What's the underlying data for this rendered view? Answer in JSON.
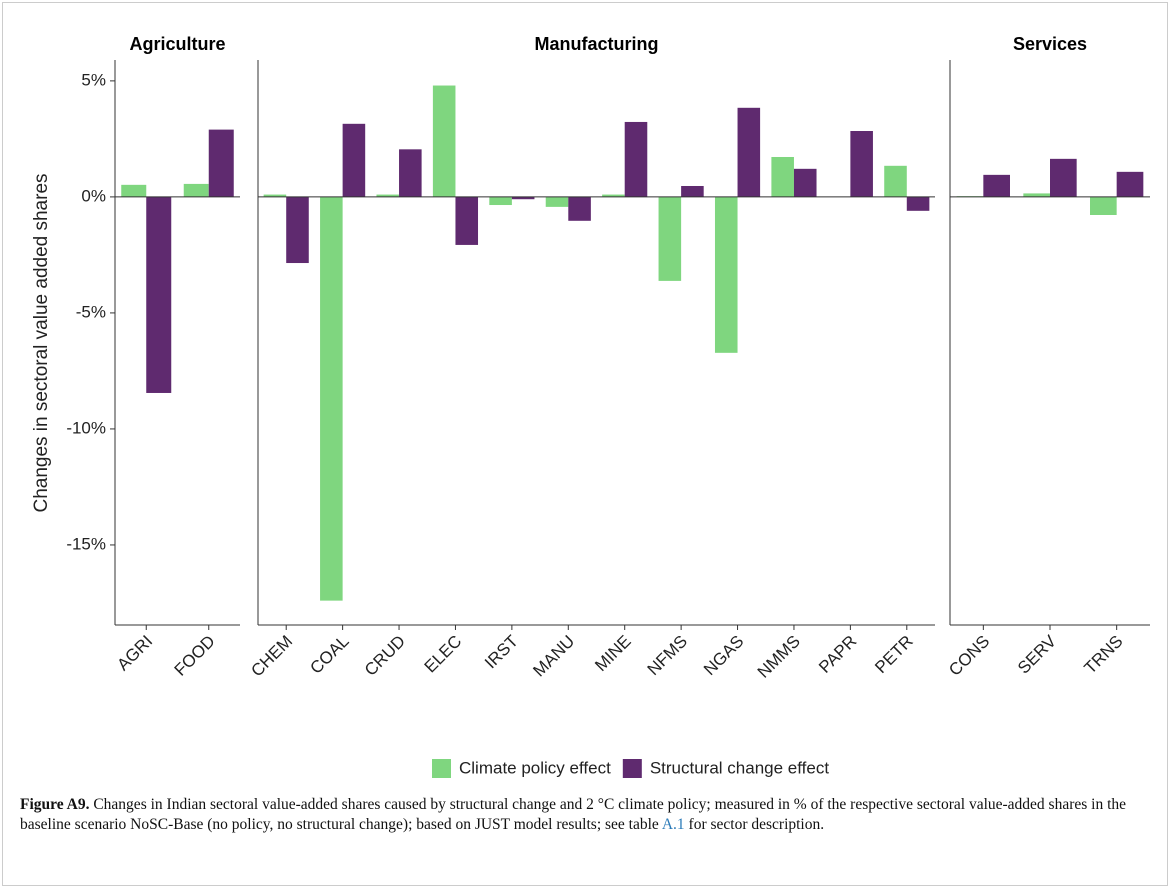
{
  "chart_data": {
    "type": "bar",
    "y_label": "Changes in sectoral value added shares",
    "ylim": [
      -18.45,
      5.9
    ],
    "yticks": [
      {
        "value": 5,
        "label": "5%"
      },
      {
        "value": 0,
        "label": "0%"
      },
      {
        "value": -5,
        "label": "-5%"
      },
      {
        "value": -10,
        "label": "-10%"
      },
      {
        "value": -15,
        "label": "-15%"
      }
    ],
    "legend_position": "bottom",
    "series": [
      {
        "name": "Climate policy effect",
        "color": "#7fd67f"
      },
      {
        "name": "Structural change effect",
        "color": "#5f2a6f"
      }
    ],
    "panels": [
      {
        "title": "Agriculture",
        "categories": [
          "AGRI",
          "FOOD"
        ],
        "values": [
          [
            0.52,
            0.56
          ],
          [
            -8.45,
            2.9
          ]
        ]
      },
      {
        "title": "Manufacturing",
        "categories": [
          "CHEM",
          "COAL",
          "CRUD",
          "ELEC",
          "IRST",
          "MANU",
          "MINE",
          "NFMS",
          "NGAS",
          "NMMS",
          "PAPR",
          "PETR"
        ],
        "values": [
          [
            0.1,
            -17.4,
            0.1,
            4.8,
            -0.35,
            -0.43,
            0.1,
            -3.62,
            -6.72,
            1.72,
            0,
            1.34
          ],
          [
            -2.85,
            3.15,
            2.05,
            -2.07,
            -0.1,
            -1.03,
            3.23,
            0.47,
            3.84,
            1.21,
            2.84,
            -0.6
          ]
        ]
      },
      {
        "title": "Services",
        "categories": [
          "CONS",
          "SERV",
          "TRNS"
        ],
        "values": [
          [
            0.03,
            0.15,
            -0.78
          ],
          [
            0.95,
            1.64,
            1.08
          ]
        ]
      }
    ]
  },
  "caption": {
    "label": "Figure A9.",
    "text_before": "Changes in Indian sectoral value-added shares caused by structural change and 2 °C climate policy; measured in % of the respective sectoral value-added shares in the baseline scenario NoSC-Base (no policy, no structural change); based on JUST model results; see table",
    "link": "A.1",
    "text_after": "for sector description."
  }
}
